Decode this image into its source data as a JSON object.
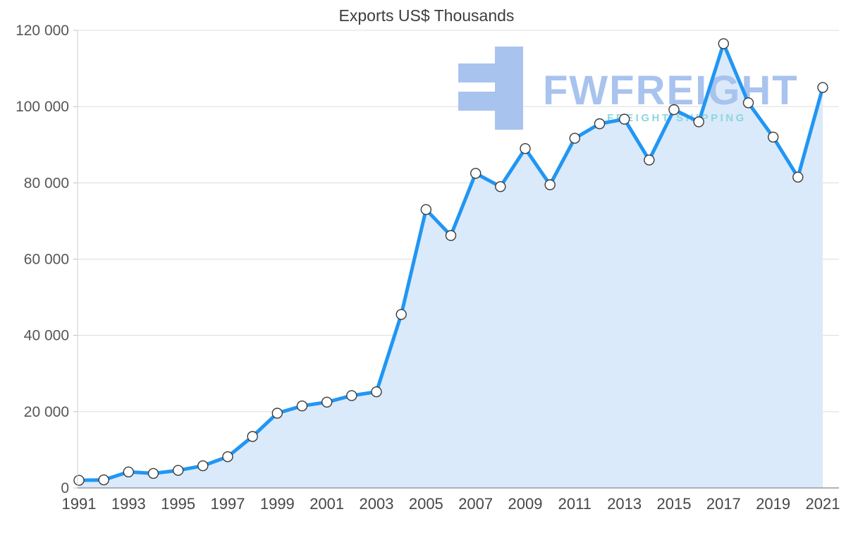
{
  "chart_data": {
    "type": "line",
    "title": "Exports US$ Thousands",
    "xlabel": "",
    "ylabel": "",
    "x": [
      1991,
      1992,
      1993,
      1994,
      1995,
      1996,
      1997,
      1998,
      1999,
      2000,
      2001,
      2002,
      2003,
      2004,
      2005,
      2006,
      2007,
      2008,
      2009,
      2010,
      2011,
      2012,
      2013,
      2014,
      2015,
      2016,
      2017,
      2018,
      2019,
      2020,
      2021
    ],
    "series": [
      {
        "name": "Exports US$ Thousands",
        "values": [
          2000,
          2100,
          4200,
          3800,
          4600,
          5800,
          8200,
          13500,
          19600,
          21500,
          22500,
          24200,
          25200,
          45500,
          73000,
          66200,
          82500,
          79000,
          89000,
          79500,
          91700,
          95500,
          96700,
          86000,
          99200,
          96000,
          116500,
          101000,
          92000,
          81500,
          105000
        ]
      }
    ],
    "ylim": [
      0,
      120000
    ],
    "ytick_values": [
      0,
      20000,
      40000,
      60000,
      80000,
      100000,
      120000
    ],
    "ytick_labels": [
      "0",
      "20 000",
      "40 000",
      "60 000",
      "80 000",
      "100 000",
      "120 000"
    ],
    "xtick_labels": [
      "1991",
      "1993",
      "1995",
      "1997",
      "1999",
      "2001",
      "2003",
      "2005",
      "2007",
      "2009",
      "2011",
      "2013",
      "2015",
      "2017",
      "2019",
      "2021"
    ],
    "grid": true,
    "legend": false,
    "marker_style": "white-circle-dark-outline",
    "colors": {
      "line": "#2196f3",
      "area_fill": "#daeafa",
      "marker_fill": "#ffffff",
      "marker_stroke": "#3a3a3a",
      "gridline": "#dcdcdc",
      "axis": "#9a9a9a"
    }
  },
  "watermark": {
    "brand": "FWFREIGHT",
    "subtitle": "FREIGHT SHIPPING",
    "logo_icon": "fwfreight-logo-icon",
    "colors": {
      "brand": "#a9c3ef",
      "subtitle": "#8cd6e0",
      "logo": "#a9c3ef"
    }
  }
}
